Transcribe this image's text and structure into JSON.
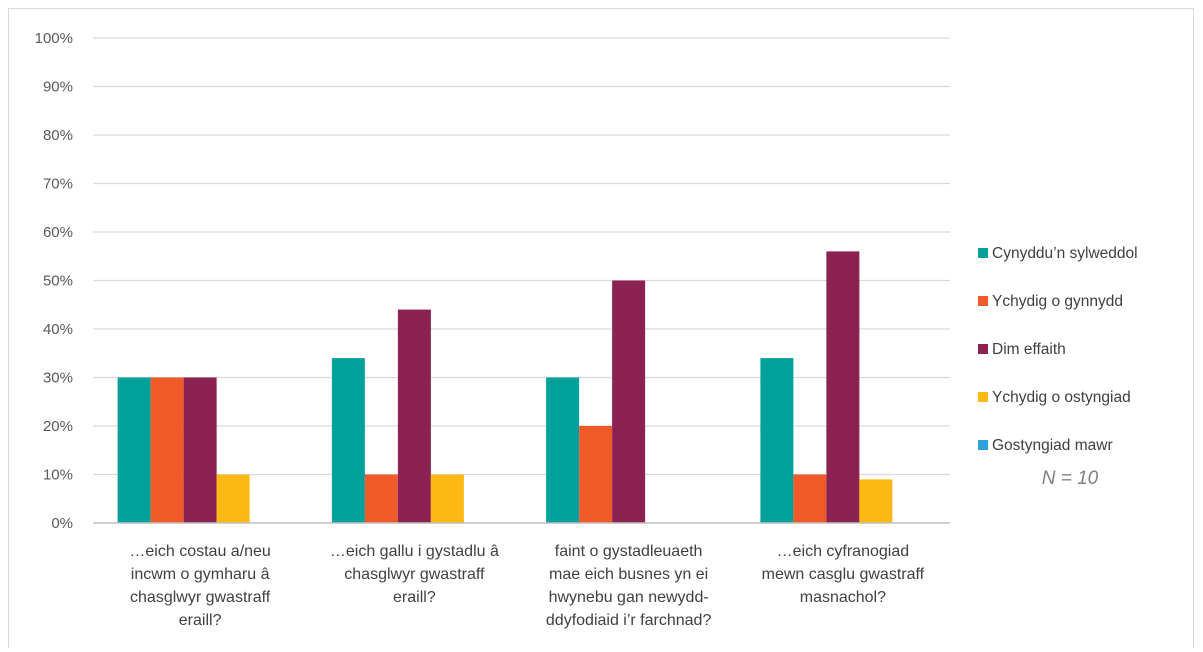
{
  "chart_data": {
    "type": "bar",
    "title": "",
    "xlabel": "",
    "ylabel": "",
    "ylim": [
      0,
      100
    ],
    "y_ticks": [
      "0%",
      "10%",
      "20%",
      "30%",
      "40%",
      "50%",
      "60%",
      "70%",
      "80%",
      "90%",
      "100%"
    ],
    "grid": true,
    "legend_position": "right",
    "categories": [
      [
        "…eich costau a/neu",
        "incwm o gymharu â",
        "chasglwyr gwastraff",
        "eraill?"
      ],
      [
        "…eich gallu i gystadlu â",
        "chasglwyr gwastraff",
        "eraill?"
      ],
      [
        "faint o gystadleuaeth",
        "mae eich busnes yn ei",
        "hwynebu gan newydd-",
        "ddyfodiaid i’r farchnad?"
      ],
      [
        "…eich cyfranogiad",
        "mewn casglu gwastraff",
        "masnachol?"
      ]
    ],
    "series": [
      {
        "name": "Cynyddu’n sylweddol",
        "color": "#00a19a",
        "values": [
          30,
          34,
          30,
          34
        ]
      },
      {
        "name": "Ychydig o gynnydd",
        "color": "#f05a28",
        "values": [
          30,
          10,
          20,
          10
        ]
      },
      {
        "name": "Dim effaith",
        "color": "#8b2252",
        "values": [
          30,
          44,
          50,
          56
        ]
      },
      {
        "name": "Ychydig o ostyngiad",
        "color": "#fdb913",
        "values": [
          10,
          10,
          0,
          9
        ]
      },
      {
        "name": "Gostyngiad mawr",
        "color": "#2ea3db",
        "values": [
          0,
          0,
          0,
          0
        ]
      }
    ],
    "annotation": "N = 10"
  }
}
